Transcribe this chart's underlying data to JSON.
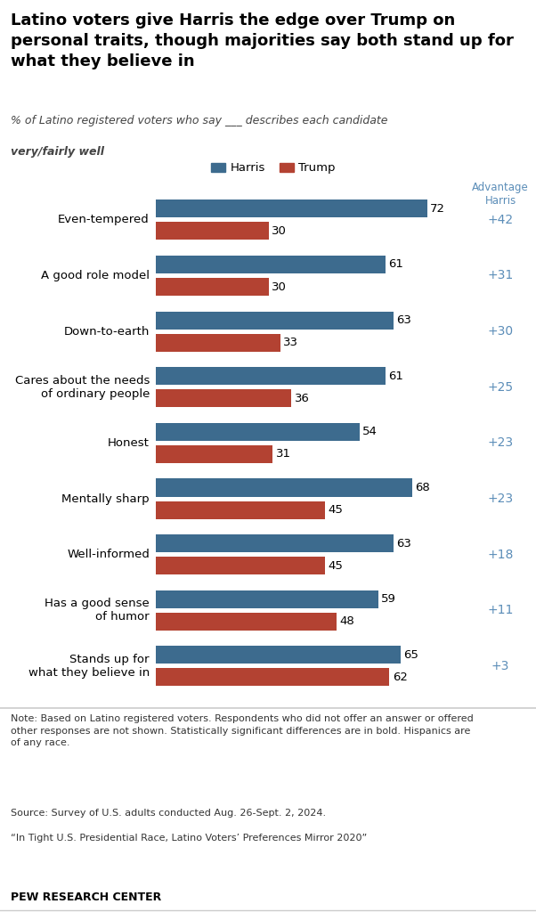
{
  "title": "Latino voters give Harris the edge over Trump on\npersonal traits, though majorities say both stand up for\nwhat they believe in",
  "subtitle_line1": "% of Latino registered voters who say ___ describes each candidate",
  "subtitle_line2": "very/fairly well",
  "categories": [
    "Even-tempered",
    "A good role model",
    "Down-to-earth",
    "Cares about the needs\nof ordinary people",
    "Honest",
    "Mentally sharp",
    "Well-informed",
    "Has a good sense\nof humor",
    "Stands up for\nwhat they believe in"
  ],
  "harris_values": [
    72,
    61,
    63,
    61,
    54,
    68,
    63,
    59,
    65
  ],
  "trump_values": [
    30,
    30,
    33,
    36,
    31,
    45,
    45,
    48,
    62
  ],
  "advantages": [
    "+42",
    "+31",
    "+30",
    "+25",
    "+23",
    "+23",
    "+18",
    "+11",
    "+3"
  ],
  "harris_color": "#3d6b8e",
  "trump_color": "#b34232",
  "advantage_bg": "#e5e0d8",
  "advantage_text_color": "#5b8db8",
  "source_bold": "PEW RESEARCH CENTER",
  "bar_height": 0.32,
  "xlim_max": 82
}
